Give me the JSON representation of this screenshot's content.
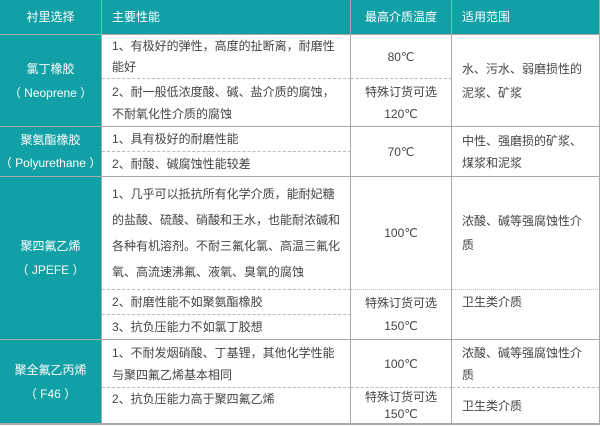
{
  "header": [
    "衬里选择",
    "主要性能",
    "最高介质温度",
    "适用范围"
  ],
  "rows": [
    {
      "name": "氯丁橡胶",
      "code": "（ Neoprene ）",
      "props": [
        "1、有极好的弹性，高度的扯断离，耐磨性能好",
        "2、耐一般低浓度酸、碱、盐介质的腐蚀，不耐氧化性介质的腐蚀"
      ],
      "temps": [
        "80℃",
        "特殊订货可选",
        "120℃"
      ],
      "uses": [
        "水、污水、弱磨损性的泥浆、矿浆"
      ]
    },
    {
      "name": "聚氨酯橡胶",
      "code": "（ Polyurethane ）",
      "props": [
        "1、具有极好的耐磨性能",
        "2、耐酸、碱腐蚀性能较差"
      ],
      "temps": [
        "70℃"
      ],
      "uses": [
        "中性、强磨损的矿浆、煤浆和泥浆"
      ]
    },
    {
      "name": "聚四氟乙烯",
      "code": "（ JPEFE ）",
      "props": [
        "1、几乎可以抵抗所有化学介质，能耐妃糖的盐酸、硫酸、硝酸和王水，也能耐浓碱和各种有机溶剂。不耐三氟化氯、高温三氟化氧、高流速沸氟、液氧、臭氧的腐蚀",
        "2、耐磨性能不如聚氨酯橡胶",
        "3、抗负压能力不如氯丁胶想"
      ],
      "temps": [
        "100℃",
        "特殊订货可选",
        "150℃"
      ],
      "uses": [
        "浓酸、碱等强腐蚀性介质",
        "卫生类介质"
      ]
    },
    {
      "name": "聚全氟乙丙烯",
      "code": "（ F46 ）",
      "props": [
        "1、不耐发烟硝酸、丁基锂，其他化学性能与聚四氟乙烯基本相同",
        "2、抗负压能力高于聚四氟乙烯"
      ],
      "temps": [
        "100℃",
        "特殊订货可选",
        "150℃"
      ],
      "uses": [
        "浓酸、碱等强腐蚀性介质",
        "卫生类介质"
      ]
    }
  ],
  "colors": {
    "accent": "#10a0a6",
    "border": "#a8a8a8"
  }
}
